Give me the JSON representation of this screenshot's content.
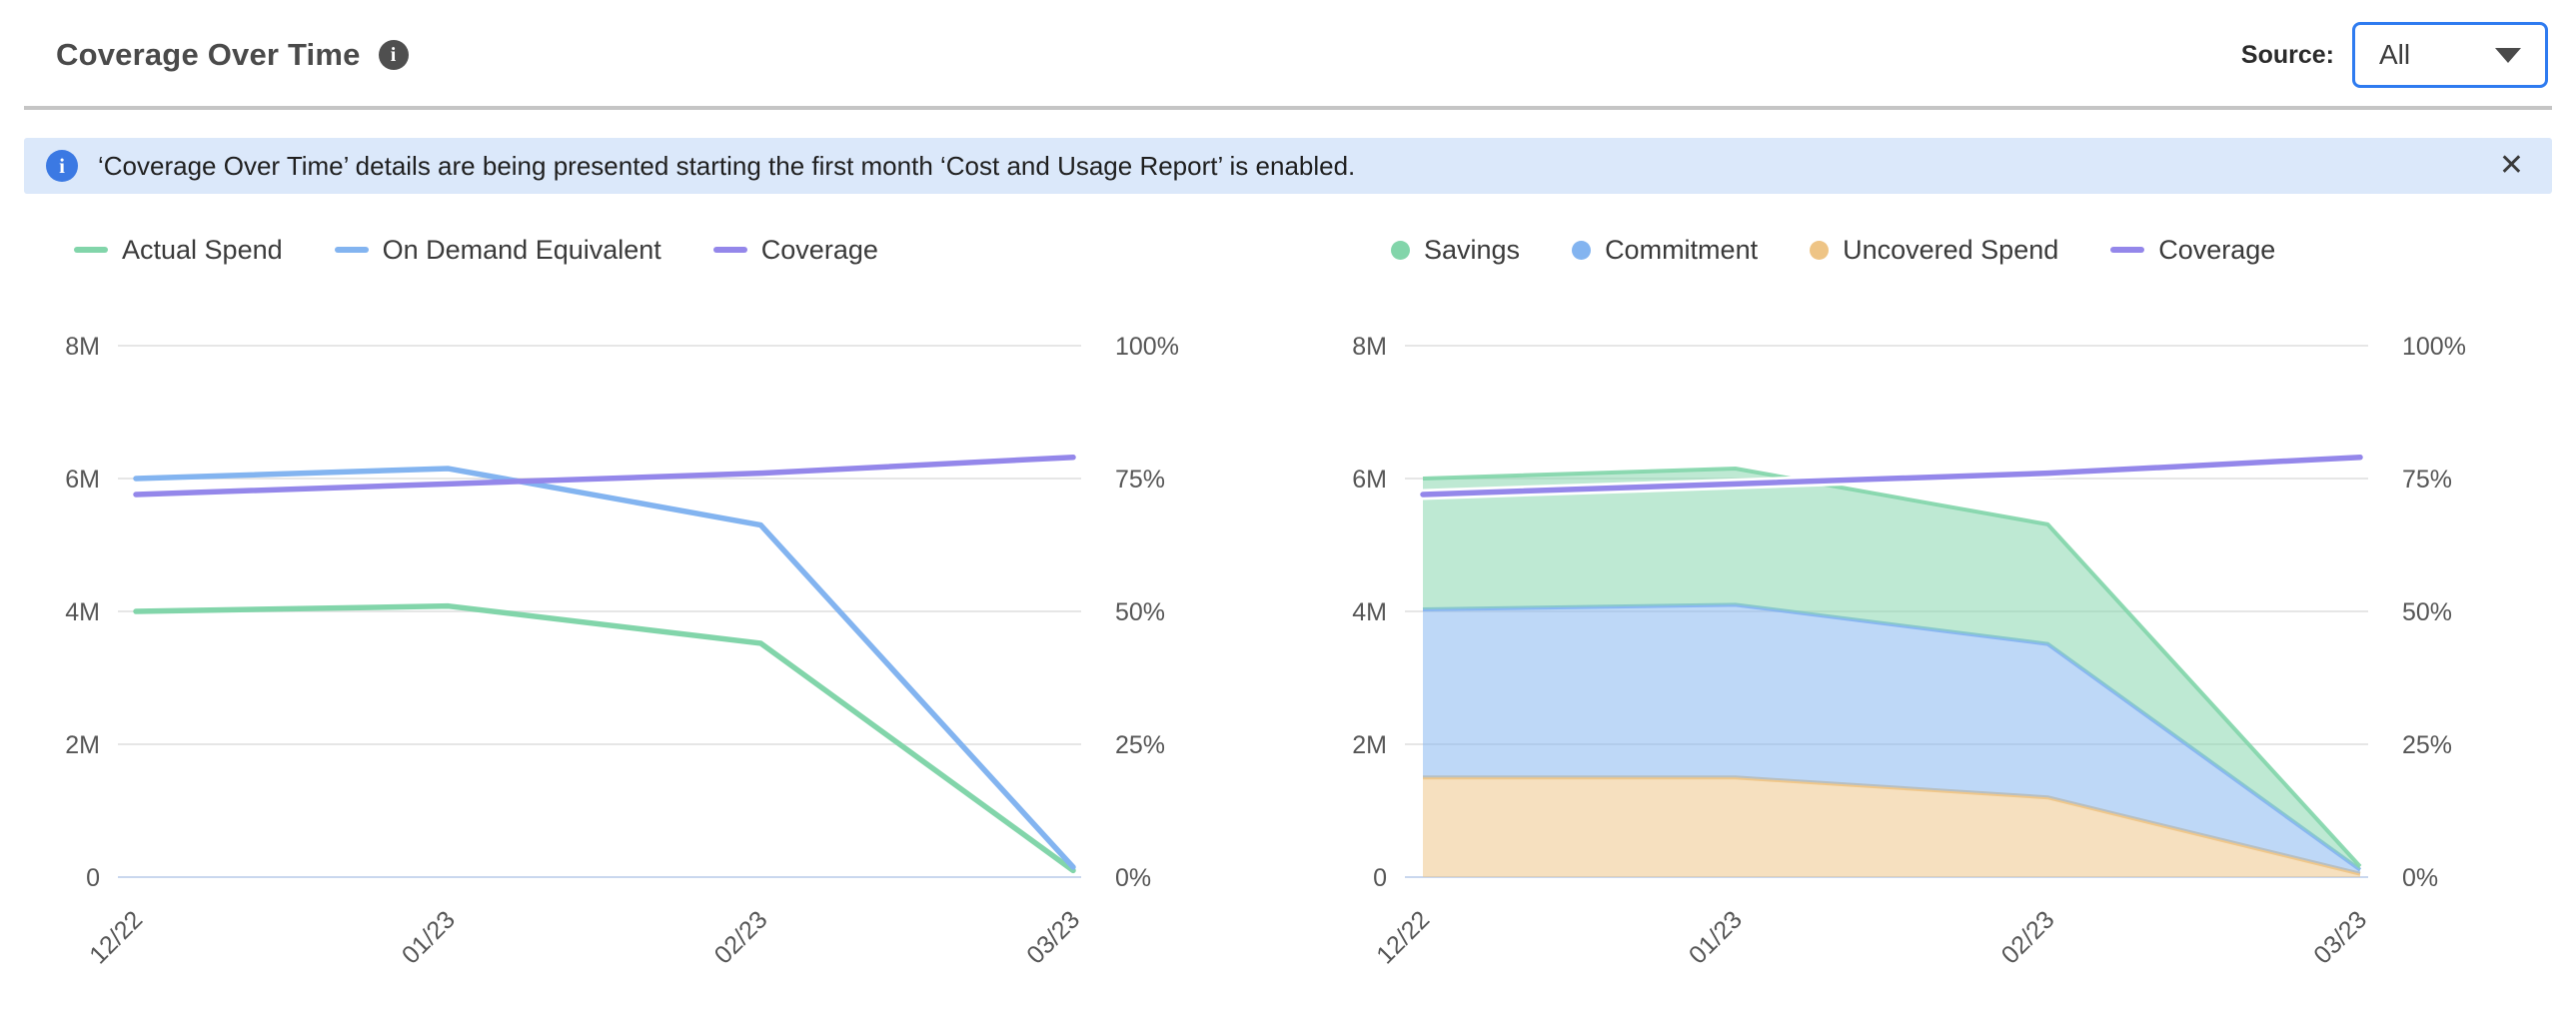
{
  "header": {
    "title": "Coverage Over Time",
    "info_glyph": "i",
    "source_label": "Source:",
    "source_value": "All"
  },
  "banner": {
    "info_glyph": "i",
    "text": "‘Coverage Over Time’ details are being presented starting the first month ‘Cost and Usage Report’ is enabled.",
    "close_glyph": "✕"
  },
  "colors": {
    "green": "#82d5aa",
    "blue": "#83b4f0",
    "orange": "#eec485",
    "purple": "#9487ea",
    "grid": "#e6e6e6",
    "zero_line": "#c9d7ee",
    "axis_text": "#565656",
    "accent_border": "#2e7bf0"
  },
  "chart_data": [
    {
      "type": "line",
      "categories": [
        "12/22",
        "01/23",
        "02/23",
        "03/23"
      ],
      "left_axis": {
        "ticks": [
          "0",
          "2M",
          "4M",
          "6M",
          "8M"
        ],
        "min": 0,
        "max": 8,
        "unit": "M"
      },
      "right_axis": {
        "ticks": [
          "0%",
          "25%",
          "50%",
          "75%",
          "100%"
        ],
        "min": 0,
        "max": 100,
        "unit": "%"
      },
      "grid": true,
      "legend_position": "top",
      "series": [
        {
          "name": "Actual Spend",
          "axis": "left",
          "color_key": "green",
          "values": [
            4.0,
            4.08,
            3.52,
            0.1
          ]
        },
        {
          "name": "On Demand Equivalent",
          "axis": "left",
          "color_key": "blue",
          "values": [
            6.0,
            6.15,
            5.3,
            0.15
          ]
        },
        {
          "name": "Coverage",
          "axis": "right",
          "color_key": "purple",
          "halo": false,
          "values": [
            72,
            74,
            76,
            79
          ]
        }
      ],
      "legend": [
        {
          "label": "Actual Spend",
          "marker": "line",
          "color_key": "green"
        },
        {
          "label": "On Demand Equivalent",
          "marker": "line",
          "color_key": "blue"
        },
        {
          "label": "Coverage",
          "marker": "line",
          "color_key": "purple"
        }
      ]
    },
    {
      "type": "stacked-area",
      "categories": [
        "12/22",
        "01/23",
        "02/23",
        "03/23"
      ],
      "left_axis": {
        "ticks": [
          "0",
          "2M",
          "4M",
          "6M",
          "8M"
        ],
        "min": 0,
        "max": 8,
        "unit": "M"
      },
      "right_axis": {
        "ticks": [
          "0%",
          "25%",
          "50%",
          "75%",
          "100%"
        ],
        "min": 0,
        "max": 100,
        "unit": "%"
      },
      "grid": true,
      "legend_position": "top",
      "series": [
        {
          "name": "Uncovered Spend",
          "kind": "area",
          "axis": "left",
          "color_key": "orange",
          "values": [
            1.5,
            1.5,
            1.2,
            0.05
          ]
        },
        {
          "name": "Commitment",
          "kind": "area",
          "axis": "left",
          "color_key": "blue",
          "values": [
            2.53,
            2.6,
            2.31,
            0.06
          ]
        },
        {
          "name": "Savings",
          "kind": "area",
          "axis": "left",
          "color_key": "green",
          "values": [
            1.97,
            2.05,
            1.8,
            0.05
          ]
        },
        {
          "name": "Coverage",
          "kind": "line",
          "axis": "right",
          "color_key": "purple",
          "halo": true,
          "values": [
            72,
            74,
            76,
            79
          ]
        }
      ],
      "legend": [
        {
          "label": "Savings",
          "marker": "circle",
          "color_key": "green"
        },
        {
          "label": "Commitment",
          "marker": "circle",
          "color_key": "blue"
        },
        {
          "label": "Uncovered Spend",
          "marker": "circle",
          "color_key": "orange"
        },
        {
          "label": "Coverage",
          "marker": "line",
          "color_key": "purple"
        }
      ]
    }
  ]
}
